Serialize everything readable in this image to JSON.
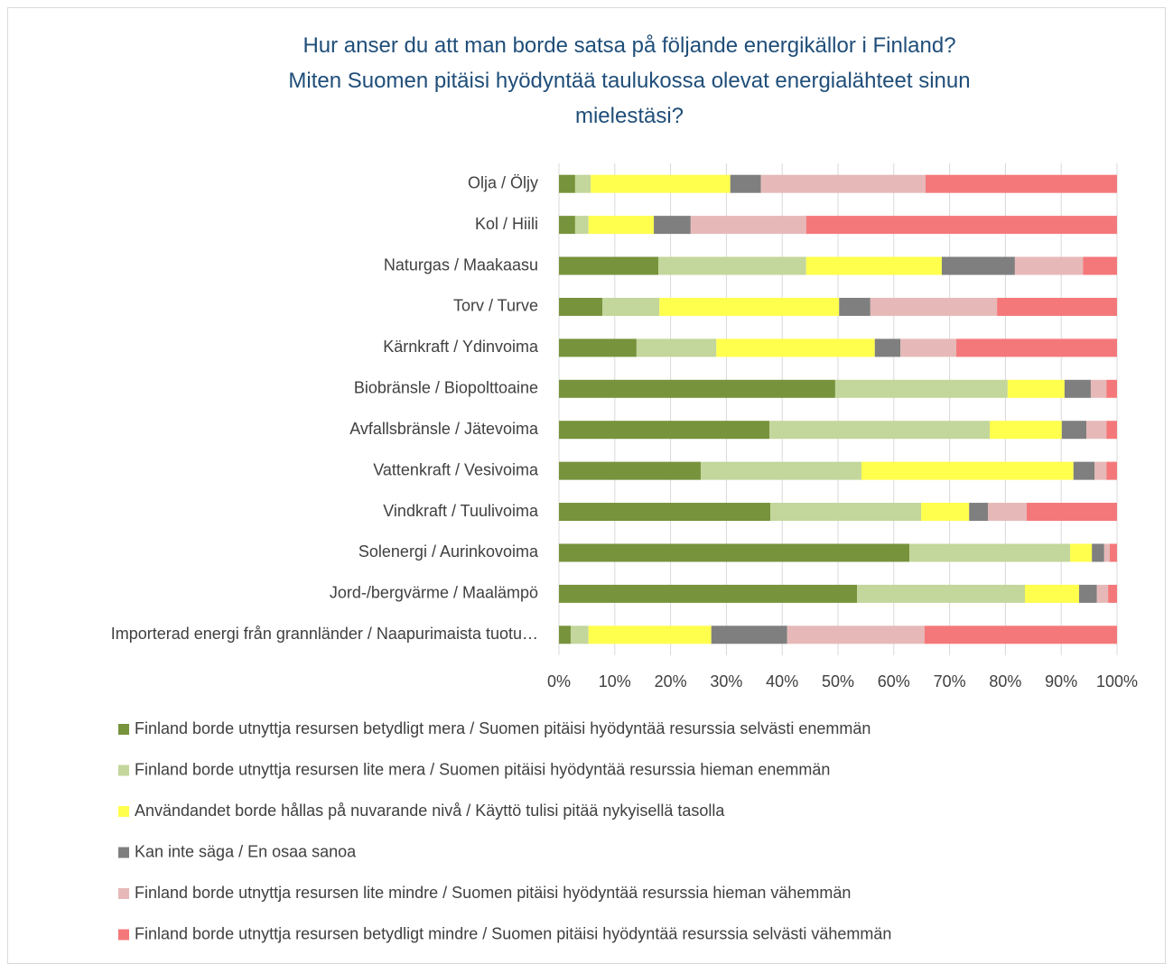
{
  "chart_data": {
    "type": "stacked_barh",
    "title": [
      "Hur anser du att man borde satsa på följande energikällor i Finland?",
      "Miten Suomen pitäisi hyödyntää taulukossa olevat energialähteet sinun mielestäsi?"
    ],
    "categories": [
      "Olja / Öljy",
      "Kol / Hiili",
      "Naturgas / Maakaasu",
      "Torv / Turve",
      "Kärnkraft / Ydinvoima",
      "Biobränsle / Biopolttoaine",
      "Avfallsbränsle / Jätevoima",
      "Vattenkraft / Vesivoima",
      "Vindkraft / Tuulivoima",
      "Solenergi / Aurinkovoima",
      "Jord-/bergvärme / Maalämpö",
      "Importerad energi från grannländer / Naapurimaista tuotu…"
    ],
    "series": [
      {
        "name": "Finland borde utnyttja resursen betydligt mera / Suomen pitäisi hyödyntää resurssia selvästi enemmän",
        "color": "#77933c",
        "values": [
          2.9,
          2.9,
          17.8,
          7.8,
          13.9,
          49.5,
          37.7,
          25.4,
          37.9,
          62.8,
          53.4,
          2.1
        ]
      },
      {
        "name": "Finland borde utnyttja resursen lite mera / Suomen pitäisi hyödyntää resurssia hieman enemmän",
        "color": "#c3d69b",
        "values": [
          2.8,
          2.4,
          26.5,
          10.2,
          14.3,
          30.9,
          39.5,
          28.8,
          27.0,
          28.8,
          30.1,
          3.2
        ]
      },
      {
        "name": "Användandet borde hållas på nuvarande nivå / Käyttö tulisi pitää nykyisellä tasolla",
        "color": "#ffff4d",
        "values": [
          25.0,
          11.7,
          24.3,
          32.2,
          28.4,
          10.2,
          12.9,
          38.0,
          8.6,
          3.9,
          9.7,
          22.0
        ]
      },
      {
        "name": "Kan inte säga / En osaa sanoa",
        "color": "#7f7f7f",
        "values": [
          5.5,
          6.6,
          13.1,
          5.6,
          4.6,
          4.7,
          4.4,
          3.8,
          3.4,
          2.2,
          3.2,
          13.6
        ]
      },
      {
        "name": "Finland borde utnyttja resursen lite mindre / Suomen pitäisi hyödyntää resurssia hieman vähemmän",
        "color": "#e6b9b8",
        "values": [
          29.5,
          20.7,
          12.2,
          22.7,
          10.0,
          2.8,
          3.6,
          2.1,
          6.9,
          1.0,
          2.0,
          24.6
        ]
      },
      {
        "name": "Finland borde utnyttja resursen betydligt mindre / Suomen pitäisi hyödyntää resurssia selvästi vähemmän",
        "color": "#f4787a",
        "values": [
          34.3,
          55.7,
          6.1,
          21.5,
          28.8,
          1.9,
          1.9,
          1.9,
          16.2,
          1.3,
          1.6,
          34.5
        ]
      }
    ],
    "xlim": [
      0,
      100
    ],
    "xticks": [
      {
        "value": 0,
        "label": "0%"
      },
      {
        "value": 10,
        "label": "10%"
      },
      {
        "value": 20,
        "label": "20%"
      },
      {
        "value": 30,
        "label": "30%"
      },
      {
        "value": 40,
        "label": "40%"
      },
      {
        "value": 50,
        "label": "50%"
      },
      {
        "value": 60,
        "label": "60%"
      },
      {
        "value": 70,
        "label": "70%"
      },
      {
        "value": 80,
        "label": "80%"
      },
      {
        "value": 90,
        "label": "90%"
      },
      {
        "value": 100,
        "label": "100%"
      }
    ],
    "grid": true
  }
}
